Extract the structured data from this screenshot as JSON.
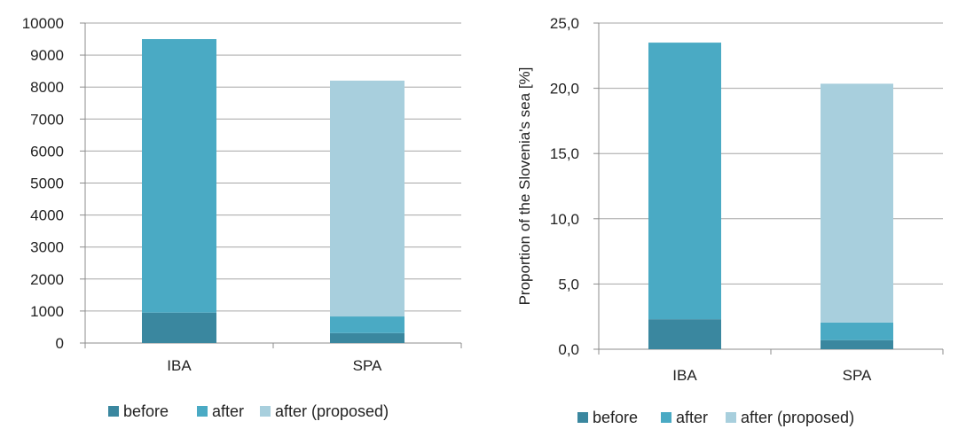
{
  "chart_data": [
    {
      "type": "bar",
      "stacked": true,
      "categories": [
        "IBA",
        "SPA"
      ],
      "series": [
        {
          "name": "before",
          "values": [
            950,
            310
          ],
          "color": "#3a879f"
        },
        {
          "name": "after",
          "values": [
            8550,
            520
          ],
          "color": "#4aaac4"
        },
        {
          "name": "after (proposed)",
          "values": [
            0,
            7370
          ],
          "color": "#a8cfdd"
        }
      ],
      "ylim": [
        0,
        10000
      ],
      "yticks": [
        "0",
        "1000",
        "2000",
        "3000",
        "4000",
        "5000",
        "6000",
        "7000",
        "8000",
        "9000",
        "10000"
      ],
      "ylabel": "",
      "xlabel": "",
      "grid": true,
      "legend": "bottom"
    },
    {
      "type": "bar",
      "stacked": true,
      "categories": [
        "IBA",
        "SPA"
      ],
      "series": [
        {
          "name": "before",
          "values": [
            2.3,
            0.7
          ],
          "color": "#3a879f"
        },
        {
          "name": "after",
          "values": [
            21.2,
            1.35
          ],
          "color": "#4aaac4"
        },
        {
          "name": "after (proposed)",
          "values": [
            0,
            18.3
          ],
          "color": "#a8cfdd"
        }
      ],
      "ylim": [
        0,
        25
      ],
      "yticks": [
        "0,0",
        "5,0",
        "10,0",
        "15,0",
        "20,0",
        "25,0"
      ],
      "ylabel": "Proportion of the Slovenia's sea [%]",
      "xlabel": "",
      "grid": true,
      "legend": "bottom"
    }
  ]
}
